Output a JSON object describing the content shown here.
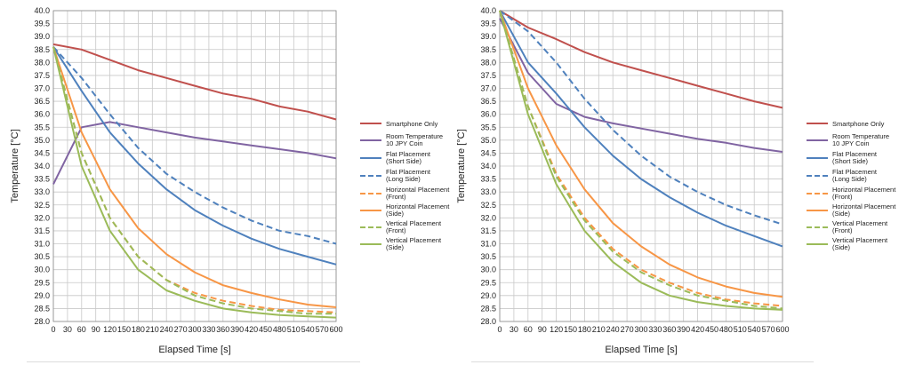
{
  "colors": {
    "smartphone_only": "#C0504D",
    "room_temp_coin": "#8064A2",
    "flat": "#4F81BD",
    "horizontal": "#F79646",
    "vertical": "#9BBB59"
  },
  "chart_data": [
    {
      "type": "line",
      "xlabel": "Elapsed Time [s]",
      "ylabel": "Temperature [°C]",
      "xlim": [
        0,
        600
      ],
      "ylim": [
        28.0,
        40.0
      ],
      "x_ticks": [
        0,
        30,
        60,
        90,
        120,
        150,
        180,
        210,
        240,
        270,
        300,
        330,
        360,
        390,
        420,
        450,
        480,
        510,
        540,
        570,
        600
      ],
      "y_ticks": [
        "40.0",
        "39.5",
        "39.0",
        "38.5",
        "38.0",
        "37.5",
        "37.0",
        "36.5",
        "36.0",
        "35.5",
        "35.0",
        "34.5",
        "34.0",
        "33.5",
        "33.0",
        "32.5",
        "32.0",
        "31.5",
        "31.0",
        "30.5",
        "30.0",
        "29.5",
        "29.0",
        "28.5",
        "28.0"
      ],
      "grid": true,
      "legend_position": "right",
      "x": [
        0,
        60,
        120,
        180,
        240,
        300,
        360,
        420,
        480,
        540,
        600
      ],
      "series": [
        {
          "name": "Smartphone Only",
          "line": [
            [
              "Smartphone Only"
            ]
          ],
          "style": "solid",
          "color_key": "smartphone_only",
          "values": [
            38.7,
            38.5,
            38.1,
            37.7,
            37.4,
            37.1,
            36.8,
            36.6,
            36.3,
            36.1,
            35.8
          ]
        },
        {
          "name": "Room Temperature 10 JPY Coin",
          "line": [
            [
              "Room Temperature",
              "10 JPY Coin"
            ]
          ],
          "style": "solid",
          "color_key": "room_temp_coin",
          "values": [
            33.3,
            35.5,
            35.7,
            35.5,
            35.3,
            35.1,
            34.95,
            34.8,
            34.65,
            34.5,
            34.3
          ]
        },
        {
          "name": "Flat Placement (Short Side)",
          "style": "solid",
          "color_key": "flat",
          "values": [
            38.6,
            36.9,
            35.3,
            34.1,
            33.1,
            32.3,
            31.7,
            31.2,
            30.8,
            30.5,
            30.2
          ]
        },
        {
          "name": "Flat Placement (Long Side)",
          "style": "dashed",
          "color_key": "flat",
          "values": [
            38.6,
            37.4,
            36.0,
            34.7,
            33.7,
            33.0,
            32.4,
            31.9,
            31.5,
            31.3,
            31.0
          ]
        },
        {
          "name": "Horizontal Placement (Front)",
          "style": "dashed",
          "color_key": "horizontal",
          "values": [
            38.6,
            34.5,
            32.0,
            30.5,
            29.6,
            29.1,
            28.8,
            28.6,
            28.45,
            28.4,
            28.35
          ]
        },
        {
          "name": "Horizontal Placement (Side)",
          "style": "solid",
          "color_key": "horizontal",
          "values": [
            38.6,
            35.3,
            33.1,
            31.6,
            30.6,
            29.9,
            29.4,
            29.1,
            28.85,
            28.65,
            28.55
          ]
        },
        {
          "name": "Vertical Placement (Front)",
          "style": "dashed",
          "color_key": "vertical",
          "values": [
            38.6,
            34.5,
            32.0,
            30.5,
            29.6,
            29.0,
            28.7,
            28.5,
            28.4,
            28.3,
            28.3
          ]
        },
        {
          "name": "Vertical Placement (Side)",
          "style": "solid",
          "color_key": "vertical",
          "values": [
            38.6,
            34.0,
            31.5,
            30.0,
            29.2,
            28.8,
            28.5,
            28.35,
            28.25,
            28.2,
            28.15
          ]
        }
      ]
    },
    {
      "type": "line",
      "xlabel": "Elapsed Time [s]",
      "ylabel": "Temperature [°C]",
      "xlim": [
        0,
        600
      ],
      "ylim": [
        28.0,
        40.0
      ],
      "x_ticks": [
        0,
        30,
        60,
        90,
        120,
        150,
        180,
        210,
        240,
        270,
        300,
        330,
        360,
        390,
        420,
        450,
        480,
        510,
        540,
        570,
        600
      ],
      "y_ticks": [
        "40.0",
        "39.5",
        "39.0",
        "38.5",
        "38.0",
        "37.5",
        "37.0",
        "36.5",
        "36.0",
        "35.5",
        "35.0",
        "34.5",
        "34.0",
        "33.5",
        "33.0",
        "32.5",
        "32.0",
        "31.5",
        "31.0",
        "30.5",
        "30.0",
        "29.5",
        "29.0",
        "28.5",
        "28.0"
      ],
      "grid": true,
      "legend_position": "right",
      "x": [
        0,
        60,
        120,
        180,
        240,
        300,
        360,
        420,
        480,
        540,
        600
      ],
      "series": [
        {
          "name": "Smartphone Only",
          "style": "solid",
          "color_key": "smartphone_only",
          "values": [
            40.0,
            39.35,
            38.9,
            38.4,
            38.0,
            37.7,
            37.4,
            37.1,
            36.8,
            36.5,
            36.25
          ]
        },
        {
          "name": "Room Temperature 10 JPY Coin",
          "style": "solid",
          "color_key": "room_temp_coin",
          "values": [
            39.7,
            37.6,
            36.4,
            35.9,
            35.65,
            35.45,
            35.25,
            35.05,
            34.9,
            34.7,
            34.55
          ]
        },
        {
          "name": "Flat Placement (Short Side)",
          "style": "solid",
          "color_key": "flat",
          "values": [
            40.0,
            38.0,
            36.8,
            35.5,
            34.4,
            33.5,
            32.8,
            32.2,
            31.7,
            31.3,
            30.9
          ]
        },
        {
          "name": "Flat Placement (Long Side)",
          "style": "dashed",
          "color_key": "flat",
          "values": [
            40.0,
            39.2,
            38.0,
            36.6,
            35.4,
            34.4,
            33.6,
            33.0,
            32.5,
            32.1,
            31.75
          ]
        },
        {
          "name": "Horizontal Placement (Front)",
          "style": "dashed",
          "color_key": "horizontal",
          "values": [
            40.0,
            36.3,
            33.7,
            32.0,
            30.8,
            30.0,
            29.5,
            29.1,
            28.85,
            28.7,
            28.6
          ]
        },
        {
          "name": "Horizontal Placement (Side)",
          "style": "solid",
          "color_key": "horizontal",
          "values": [
            40.0,
            37.0,
            34.8,
            33.1,
            31.8,
            30.9,
            30.2,
            29.7,
            29.35,
            29.1,
            28.95
          ]
        },
        {
          "name": "Vertical Placement (Front)",
          "style": "dashed",
          "color_key": "vertical",
          "values": [
            40.0,
            36.3,
            33.6,
            31.9,
            30.7,
            29.9,
            29.4,
            29.0,
            28.8,
            28.6,
            28.5
          ]
        },
        {
          "name": "Vertical Placement (Side)",
          "style": "solid",
          "color_key": "vertical",
          "values": [
            40.0,
            36.0,
            33.3,
            31.5,
            30.3,
            29.5,
            29.0,
            28.75,
            28.6,
            28.5,
            28.45
          ]
        }
      ]
    }
  ],
  "legend": [
    {
      "lines": [
        "Smartphone Only"
      ],
      "style": "solid",
      "color_key": "smartphone_only"
    },
    {
      "lines": [
        "Room Temperature",
        "10 JPY Coin"
      ],
      "style": "solid",
      "color_key": "room_temp_coin"
    },
    {
      "lines": [
        "Flat Placement",
        "(Short Side)"
      ],
      "style": "solid",
      "color_key": "flat"
    },
    {
      "lines": [
        "Flat Placement",
        "(Long Side)"
      ],
      "style": "dashed",
      "color_key": "flat"
    },
    {
      "lines": [
        "Horizontal Placement",
        "(Front)"
      ],
      "style": "dashed",
      "color_key": "horizontal"
    },
    {
      "lines": [
        "Horizontal Placement",
        "(Side)"
      ],
      "style": "solid",
      "color_key": "horizontal"
    },
    {
      "lines": [
        "Vertical Placement",
        "(Front)"
      ],
      "style": "dashed",
      "color_key": "vertical"
    },
    {
      "lines": [
        "Vertical Placement",
        "(Side)"
      ],
      "style": "solid",
      "color_key": "vertical"
    }
  ]
}
